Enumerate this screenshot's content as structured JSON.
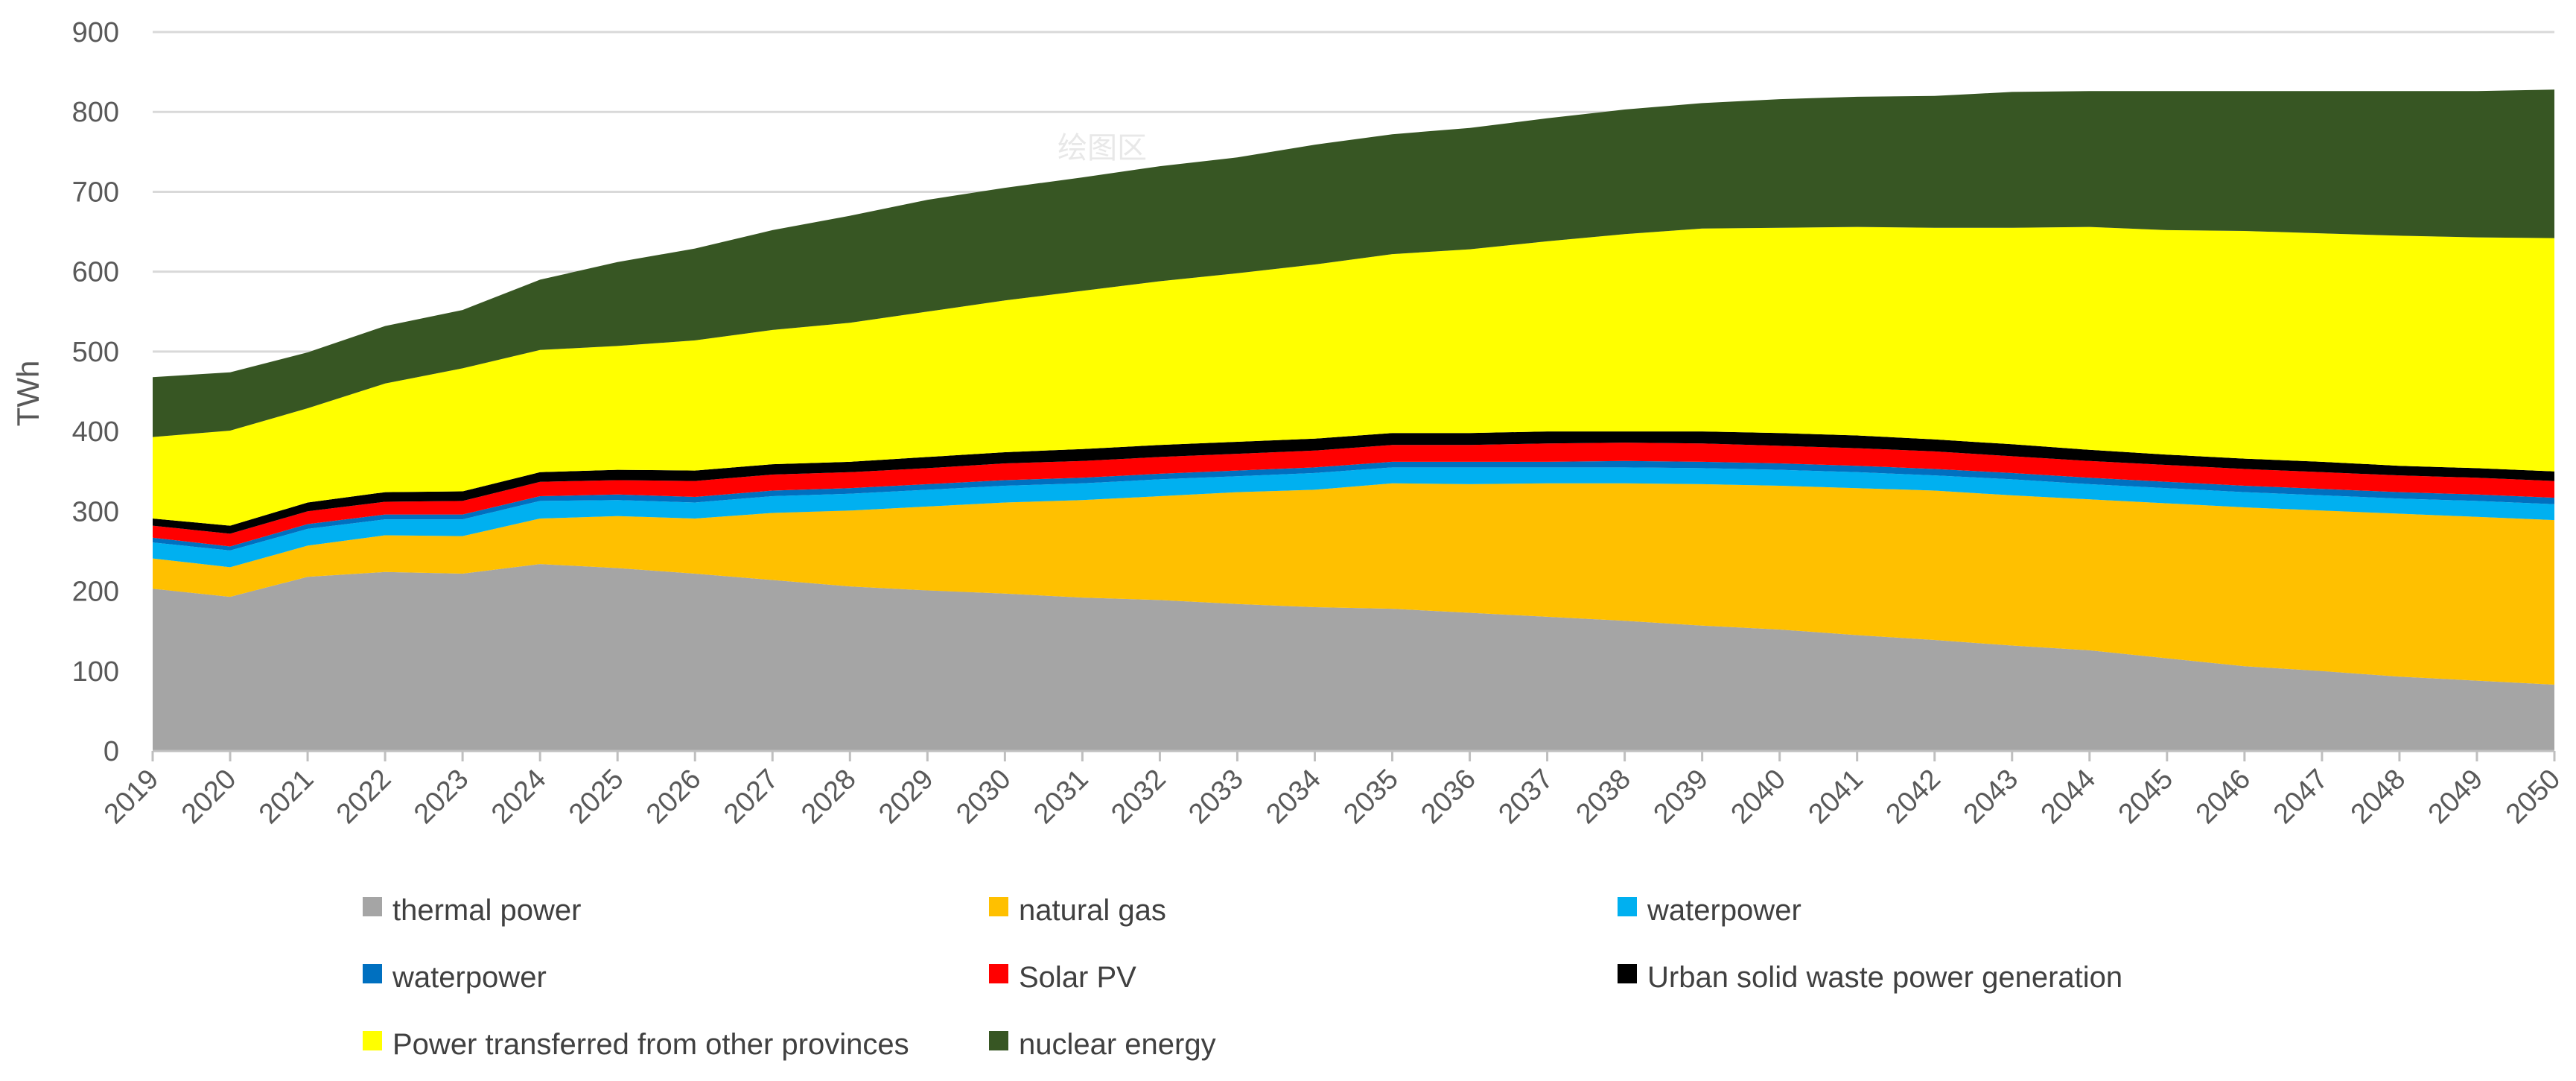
{
  "chart_data": {
    "type": "area",
    "stacked": true,
    "title": "",
    "xlabel": "",
    "ylabel": "TWh",
    "ylim": [
      0,
      900
    ],
    "yticks": [
      0,
      100,
      200,
      300,
      400,
      500,
      600,
      700,
      800,
      900
    ],
    "grid": true,
    "legend_position": "bottom",
    "watermark": "绘图区",
    "categories": [
      "2019",
      "2020",
      "2021",
      "2022",
      "2023",
      "2024",
      "2025",
      "2026",
      "2027",
      "2028",
      "2029",
      "2030",
      "2031",
      "2032",
      "2033",
      "2034",
      "2035",
      "2036",
      "2037",
      "2038",
      "2039",
      "2040",
      "2041",
      "2042",
      "2043",
      "2044",
      "2045",
      "2046",
      "2047",
      "2048",
      "2049",
      "2050"
    ],
    "series": [
      {
        "name": "thermal power",
        "color": "#a5a5a5",
        "values": [
          203,
          193,
          218,
          224,
          222,
          234,
          229,
          222,
          214,
          206,
          201,
          197,
          192,
          189,
          184,
          180,
          178,
          173,
          168,
          163,
          157,
          152,
          145,
          139,
          132,
          126,
          116,
          106,
          100,
          93,
          88,
          83
        ]
      },
      {
        "name": "natural gas",
        "color": "#ffc000",
        "values": [
          38,
          37,
          39,
          46,
          47,
          57,
          65,
          69,
          84,
          95,
          105,
          114,
          122,
          130,
          140,
          147,
          157,
          161,
          167,
          172,
          177,
          180,
          184,
          187,
          188,
          189,
          194,
          199,
          201,
          204,
          205,
          206
        ]
      },
      {
        "name": "waterpower",
        "color": "#00b0f0",
        "values": [
          20,
          21,
          21,
          20,
          21,
          22,
          20,
          20,
          21,
          21,
          21,
          21,
          21,
          21,
          20,
          21,
          20,
          21,
          20,
          20,
          20,
          20,
          20,
          19,
          20,
          19,
          19,
          19,
          19,
          19,
          20,
          20
        ]
      },
      {
        "name": "waterpower",
        "color": "#0070c0",
        "values": [
          6,
          5,
          6,
          6,
          6,
          6,
          7,
          7,
          7,
          7,
          7,
          7,
          7,
          7,
          7,
          7,
          7,
          7,
          7,
          8,
          8,
          8,
          8,
          8,
          8,
          8,
          8,
          8,
          8,
          8,
          8,
          8
        ]
      },
      {
        "name": "Solar PV",
        "color": "#ff0000",
        "values": [
          15,
          16,
          16,
          16,
          17,
          18,
          18,
          20,
          20,
          20,
          20,
          21,
          21,
          21,
          21,
          21,
          21,
          21,
          23,
          23,
          23,
          22,
          22,
          22,
          21,
          21,
          21,
          21,
          21,
          21,
          21,
          21
        ]
      },
      {
        "name": "Urban solid waste power generation",
        "color": "#000000",
        "values": [
          9,
          10,
          11,
          12,
          12,
          12,
          13,
          13,
          13,
          13,
          14,
          14,
          15,
          15,
          15,
          15,
          15,
          15,
          15,
          14,
          15,
          16,
          16,
          15,
          15,
          14,
          13,
          13,
          13,
          12,
          12,
          12
        ]
      },
      {
        "name": "Power transferred from other provinces",
        "color": "#ffff00",
        "values": [
          102,
          119,
          118,
          136,
          154,
          153,
          155,
          163,
          168,
          174,
          182,
          190,
          198,
          205,
          211,
          218,
          224,
          230,
          238,
          247,
          254,
          257,
          261,
          265,
          271,
          279,
          281,
          285,
          286,
          288,
          289,
          292
        ]
      },
      {
        "name": "nuclear energy",
        "color": "#375623",
        "values": [
          75,
          73,
          70,
          72,
          73,
          88,
          105,
          115,
          125,
          134,
          140,
          141,
          142,
          144,
          145,
          150,
          150,
          152,
          154,
          156,
          157,
          161,
          163,
          165,
          170,
          170,
          174,
          175,
          178,
          181,
          183,
          186
        ]
      }
    ]
  }
}
